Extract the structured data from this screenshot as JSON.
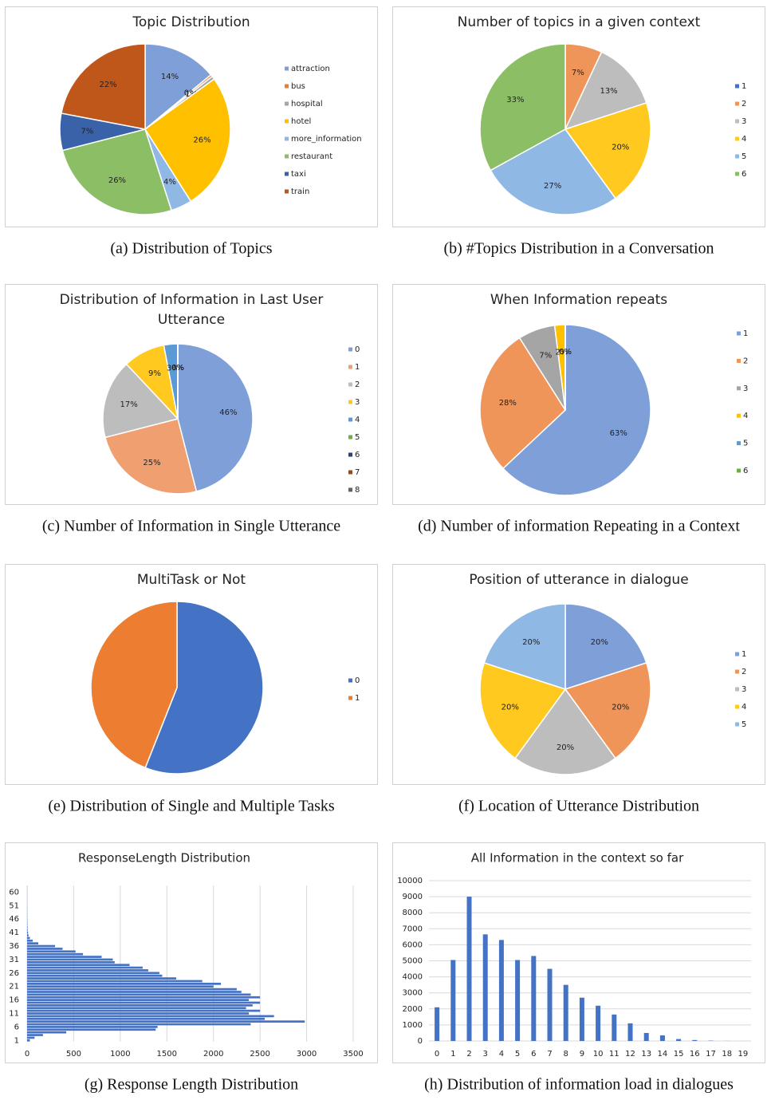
{
  "chart_data": [
    {
      "type": "pie",
      "title": "Topic Distribution",
      "caption": "(a) Distribution of Topics",
      "categories": [
        "attraction",
        "bus",
        "hospital",
        "hotel",
        "more_information",
        "restaurant",
        "taxi",
        "train"
      ],
      "values": [
        14,
        0.4,
        0.6,
        26,
        4,
        26,
        7,
        22
      ],
      "value_labels": [
        "14%",
        "0%",
        "1%",
        "26%",
        "4%",
        "26%",
        "7%",
        "22%"
      ],
      "colors": [
        "#7f9fd8",
        "#ed7d31",
        "#a5a5a5",
        "#ffc000",
        "#8fb8e4",
        "#8cbf65",
        "#3a62a8",
        "#c0571a"
      ]
    },
    {
      "type": "pie",
      "title": "Number of topics in a given context",
      "caption": "(b) #Topics Distribution in a Conversation",
      "categories": [
        "1",
        "2",
        "3",
        "4",
        "5",
        "6"
      ],
      "values": [
        0,
        7,
        13,
        20,
        27,
        33
      ],
      "value_labels": [
        "0%",
        "7%",
        "13%",
        "20%",
        "27%",
        "33%"
      ],
      "colors": [
        "#4472c4",
        "#f0955a",
        "#bdbdbd",
        "#ffc91f",
        "#8fb8e4",
        "#8cbf65"
      ]
    },
    {
      "type": "pie",
      "title": "Distribution of Information in Last User Utterance",
      "caption": "(c) Number of Information in Single Utterance",
      "categories": [
        "0",
        "1",
        "2",
        "3",
        "4",
        "5",
        "6",
        "7",
        "8"
      ],
      "values": [
        46,
        25,
        17,
        9,
        3,
        0,
        0,
        0,
        0
      ],
      "value_labels": [
        "46%",
        "25%",
        "17%",
        "9%",
        "3%",
        "0%",
        "0%",
        "0%",
        "0%"
      ],
      "colors": [
        "#7f9fd8",
        "#f0a070",
        "#bdbdbd",
        "#ffc91f",
        "#5b9bd5",
        "#70ad47",
        "#264478",
        "#9e480e",
        "#636363"
      ]
    },
    {
      "type": "pie",
      "title": "When Information repeats",
      "caption": "(d) Number of information Repeating in a Context",
      "categories": [
        "1",
        "2",
        "3",
        "4",
        "5",
        "6"
      ],
      "values": [
        63,
        28,
        7,
        2,
        0,
        0
      ],
      "value_labels": [
        "63%",
        "28%",
        "7%",
        "2%",
        "0%",
        "0%"
      ],
      "colors": [
        "#7f9fd8",
        "#f0955a",
        "#a5a5a5",
        "#ffc000",
        "#5b9bd5",
        "#70ad47"
      ]
    },
    {
      "type": "pie",
      "title": "MultiTask or Not",
      "caption": "(e) Distribution of Single and Multiple Tasks",
      "categories": [
        "0",
        "1"
      ],
      "values": [
        56,
        44
      ],
      "colors": [
        "#4472c4",
        "#ed7d31"
      ]
    },
    {
      "type": "pie",
      "title": "Position of utterance in dialogue",
      "caption": "(f) Location of Utterance Distribution",
      "categories": [
        "1",
        "2",
        "3",
        "4",
        "5"
      ],
      "values": [
        20,
        20,
        20,
        20,
        20
      ],
      "value_labels": [
        "20%",
        "20%",
        "20%",
        "20%",
        "20%"
      ],
      "colors": [
        "#7f9fd8",
        "#f0955a",
        "#bdbdbd",
        "#ffc91f",
        "#8fb8e4"
      ]
    },
    {
      "type": "hbar",
      "title": "ResponseLength  Distribution",
      "caption": "(g) Response Length Distribution",
      "categories": [
        1,
        null,
        null,
        null,
        null,
        6,
        null,
        null,
        null,
        null,
        11,
        null,
        null,
        null,
        null,
        16,
        null,
        null,
        null,
        null,
        21,
        null,
        null,
        null,
        null,
        26,
        null,
        null,
        null,
        null,
        31,
        null,
        null,
        null,
        null,
        36,
        null,
        null,
        null,
        null,
        41,
        null,
        null,
        null,
        null,
        46,
        null,
        null,
        null,
        null,
        51,
        null,
        null,
        null,
        null,
        60,
        null,
        null
      ],
      "values": [
        30,
        80,
        170,
        420,
        1380,
        1400,
        2400,
        2980,
        2550,
        2650,
        2380,
        2500,
        2350,
        2420,
        2500,
        2380,
        2500,
        2400,
        2300,
        2250,
        2000,
        2080,
        1880,
        1600,
        1450,
        1420,
        1300,
        1240,
        1100,
        940,
        920,
        800,
        600,
        520,
        380,
        300,
        120,
        60,
        30,
        15,
        10,
        6,
        5,
        4,
        3,
        3,
        2,
        2,
        2,
        2,
        1,
        1,
        1,
        1,
        1,
        1,
        1,
        1
      ],
      "color": "#4472c4",
      "xlim": [
        0,
        3500
      ],
      "xticks": [
        0,
        500,
        1000,
        1500,
        2000,
        2500,
        3000,
        3500
      ],
      "grid": true
    },
    {
      "type": "bar",
      "title": "All Information in the context so far",
      "caption": "(h) Distribution of information load in dialogues",
      "categories": [
        "0",
        "1",
        "2",
        "3",
        "4",
        "5",
        "6",
        "7",
        "8",
        "9",
        "10",
        "11",
        "12",
        "13",
        "14",
        "15",
        "16",
        "17",
        "18",
        "19"
      ],
      "values": [
        2100,
        5050,
        9000,
        6650,
        6300,
        5050,
        5300,
        4500,
        3500,
        2700,
        2200,
        1650,
        1100,
        500,
        350,
        120,
        60,
        20,
        5,
        2
      ],
      "color": "#4472c4",
      "ylim": [
        0,
        10000
      ],
      "yticks": [
        0,
        1000,
        2000,
        3000,
        4000,
        5000,
        6000,
        7000,
        8000,
        9000,
        10000
      ],
      "grid": true
    }
  ]
}
